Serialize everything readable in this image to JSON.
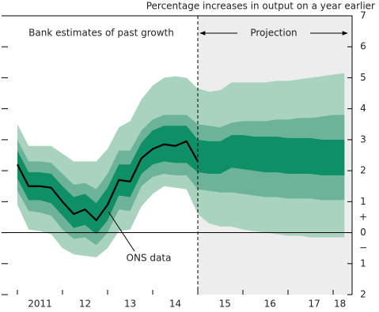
{
  "chart_data": {
    "type": "fan",
    "title": "Percentage increases in output on a year earlier",
    "annotations": {
      "past": "Bank estimates of past growth",
      "projection": "Projection",
      "ons": "ONS data"
    },
    "signs": {
      "plus": "+",
      "minus": "−"
    },
    "projection_start": 2015.0,
    "xlim": [
      2010.65,
      2018.42
    ],
    "xtick_marks": [
      2011,
      2012,
      2013,
      2014,
      2015,
      2016,
      2017,
      2018
    ],
    "xticks": [
      {
        "value": 2011.5,
        "label": "2011"
      },
      {
        "value": 2012.5,
        "label": "12"
      },
      {
        "value": 2013.5,
        "label": "13"
      },
      {
        "value": 2014.5,
        "label": "14"
      },
      {
        "value": 2015.6,
        "label": "15"
      },
      {
        "value": 2016.6,
        "label": "16"
      },
      {
        "value": 2017.58,
        "label": "17"
      },
      {
        "value": 2018.15,
        "label": "18"
      }
    ],
    "ylim": [
      -2,
      7
    ],
    "yticks": [
      {
        "value": -2,
        "label": "2"
      },
      {
        "value": -1,
        "label": "1"
      },
      0,
      1,
      2,
      3,
      4,
      5,
      6,
      7
    ],
    "x": [
      2011.0,
      2011.25,
      2011.5,
      2011.75,
      2012.0,
      2012.25,
      2012.5,
      2012.75,
      2013.0,
      2013.25,
      2013.5,
      2013.75,
      2014.0,
      2014.25,
      2014.5,
      2014.75,
      2015.0,
      2015.25,
      2015.5,
      2015.75,
      2016.0,
      2016.25,
      2016.5,
      2016.75,
      2017.0,
      2017.25,
      2017.5,
      2017.75,
      2018.0,
      2018.25
    ],
    "bands": [
      {
        "color": "#a9d3bf",
        "upper": [
          3.5,
          2.8,
          2.8,
          2.8,
          2.55,
          2.3,
          2.3,
          2.3,
          2.7,
          3.4,
          3.6,
          4.3,
          4.75,
          5.0,
          5.05,
          5.0,
          4.65,
          4.55,
          4.6,
          4.85,
          4.85,
          4.85,
          4.85,
          4.9,
          4.9,
          4.95,
          5.0,
          5.05,
          5.1,
          5.15
        ],
        "lower": [
          0.9,
          0.1,
          0.05,
          -0.05,
          -0.5,
          -0.7,
          -0.75,
          -0.8,
          -0.5,
          0.05,
          0.1,
          0.85,
          1.25,
          1.5,
          1.45,
          1.4,
          0.6,
          0.3,
          0.2,
          0.2,
          0.1,
          0.05,
          0.0,
          -0.05,
          -0.1,
          -0.1,
          -0.15,
          -0.15,
          -0.15,
          -0.15
        ]
      },
      {
        "color": "#6cb399",
        "upper": [
          3.0,
          2.3,
          2.3,
          2.25,
          1.9,
          1.55,
          1.6,
          1.4,
          1.9,
          2.65,
          2.65,
          3.3,
          3.65,
          3.8,
          3.8,
          3.8,
          3.5,
          3.45,
          3.4,
          3.55,
          3.6,
          3.6,
          3.6,
          3.65,
          3.65,
          3.7,
          3.7,
          3.75,
          3.8,
          3.8
        ],
        "lower": [
          1.35,
          0.7,
          0.65,
          0.55,
          0.1,
          -0.2,
          -0.15,
          -0.4,
          0.0,
          0.75,
          0.7,
          1.5,
          1.8,
          1.9,
          1.85,
          1.85,
          1.4,
          1.35,
          1.3,
          1.3,
          1.25,
          1.2,
          1.15,
          1.15,
          1.1,
          1.1,
          1.1,
          1.05,
          1.05,
          1.05
        ]
      },
      {
        "color": "#0f8f65",
        "upper": [
          2.65,
          1.95,
          1.95,
          1.9,
          1.5,
          1.15,
          1.25,
          0.95,
          1.45,
          2.2,
          2.2,
          2.9,
          3.3,
          3.45,
          3.45,
          3.45,
          3.0,
          2.95,
          2.95,
          3.15,
          3.15,
          3.1,
          3.1,
          3.1,
          3.05,
          3.05,
          3.05,
          3.0,
          3.0,
          3.0
        ],
        "lower": [
          1.75,
          1.05,
          1.05,
          0.95,
          0.55,
          0.15,
          0.25,
          -0.05,
          0.4,
          1.2,
          1.15,
          1.9,
          2.2,
          2.3,
          2.25,
          2.25,
          1.95,
          1.9,
          1.9,
          2.1,
          2.05,
          2.0,
          1.95,
          1.95,
          1.9,
          1.9,
          1.9,
          1.85,
          1.85,
          1.85
        ]
      }
    ],
    "series": [
      {
        "name": "ONS data",
        "color": "#000000",
        "values": [
          2.2,
          1.5,
          1.5,
          1.45,
          1.0,
          0.6,
          0.75,
          0.4,
          0.9,
          1.7,
          1.65,
          2.4,
          2.7,
          2.85,
          2.8,
          2.95,
          2.3,
          null,
          null,
          null,
          null,
          null,
          null,
          null,
          null,
          null,
          null,
          null,
          null,
          null
        ]
      }
    ]
  }
}
